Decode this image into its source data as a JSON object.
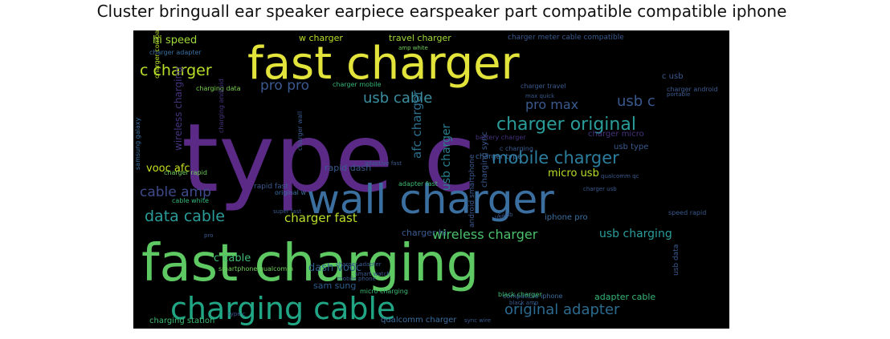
{
  "title": "Cluster bringuall ear speaker earpiece earspeaker part compatible compatible iphone",
  "words": [
    {
      "text": "type c",
      "color": "#5b2a86"
    },
    {
      "text": "fast charger",
      "color": "#e2e33b"
    },
    {
      "text": "wall charger",
      "color": "#3b6fa0"
    },
    {
      "text": "fast charging",
      "color": "#5ec962"
    },
    {
      "text": "charging cable",
      "color": "#21a685"
    },
    {
      "text": "charger original",
      "color": "#2a9d9a"
    },
    {
      "text": "mobile charger",
      "color": "#2c7e9e"
    },
    {
      "text": "original adapter",
      "color": "#2b6b8f"
    },
    {
      "text": "data cable",
      "color": "#2a9d9a"
    },
    {
      "text": "cable amp",
      "color": "#3f4a8a"
    },
    {
      "text": "c charger",
      "color": "#b8de29"
    },
    {
      "text": "hi speed",
      "color": "#a0da39"
    },
    {
      "text": "usb cable",
      "color": "#3b8fa0"
    },
    {
      "text": "pro max",
      "color": "#3a5a8f"
    },
    {
      "text": "usb c",
      "color": "#3a5a8f"
    },
    {
      "text": "pro pro",
      "color": "#3a5a8f"
    },
    {
      "text": "charger fast",
      "color": "#b8de29"
    },
    {
      "text": "wireless charger",
      "color": "#4ac16d"
    },
    {
      "text": "usb charging",
      "color": "#2a9d9a"
    },
    {
      "text": "c cable",
      "color": "#3fbc73"
    },
    {
      "text": "vooc afc",
      "color": "#c7e020"
    },
    {
      "text": "micro usb",
      "color": "#b8de29"
    },
    {
      "text": "afc charger",
      "color": "#2c6f8e"
    },
    {
      "text": "usb charger",
      "color": "#2a7f8e"
    },
    {
      "text": "dash vooc",
      "color": "#2e5d8c"
    },
    {
      "text": "sam sung",
      "color": "#2e5d8c"
    },
    {
      "text": "adapter cable",
      "color": "#35b779"
    },
    {
      "text": "charger hi",
      "color": "#3a5a8f"
    },
    {
      "text": "rapid dash",
      "color": "#3a5a8f"
    },
    {
      "text": "w charger",
      "color": "#b8de29"
    },
    {
      "text": "travel charger",
      "color": "#a0da39"
    },
    {
      "text": "charger meter cable compatible",
      "color": "#3a5a8f"
    },
    {
      "text": "charging data",
      "color": "#7ad151"
    },
    {
      "text": "iphone pro",
      "color": "#3b6fa0"
    },
    {
      "text": "usb type",
      "color": "#3a5a8f"
    },
    {
      "text": "cable white",
      "color": "#35b779"
    },
    {
      "text": "rapid fast",
      "color": "#3a5a8f"
    },
    {
      "text": "charging station",
      "color": "#3fbc73"
    },
    {
      "text": "android smartphone",
      "color": "#3a5a8f"
    },
    {
      "text": "samsung galaxy",
      "color": "#3b6fa0"
    },
    {
      "text": "wireless charging",
      "color": "#46337e"
    },
    {
      "text": "charger micro",
      "color": "#46337e"
    },
    {
      "text": "charger adapter",
      "color": "#3b6fa0"
    },
    {
      "text": "amp white",
      "color": "#6ece58"
    },
    {
      "text": "qualcomm charger",
      "color": "#3b6fa0"
    },
    {
      "text": "compatible iphone",
      "color": "#3b6fa0"
    },
    {
      "text": "speed rapid",
      "color": "#3a5a8f"
    },
    {
      "text": "charging sync",
      "color": "#3a5a8f"
    },
    {
      "text": "charger mobile",
      "color": "#35b779"
    },
    {
      "text": "charger type",
      "color": "#3b6fa0"
    },
    {
      "text": "original w",
      "color": "#3b6fa0"
    },
    {
      "text": "smartphone qualcomm",
      "color": "#6ece58"
    },
    {
      "text": "micro charging",
      "color": "#3fbc73"
    },
    {
      "text": "c usb",
      "color": "#3a5a8f"
    },
    {
      "text": "charger android",
      "color": "#3a5a8f"
    },
    {
      "text": "usb data",
      "color": "#3a5a8f"
    },
    {
      "text": "black charger",
      "color": "#3fbc73"
    },
    {
      "text": "charger rapid",
      "color": "#6ece58"
    },
    {
      "text": "charger compatible",
      "color": "#b8de29"
    },
    {
      "text": "charger travel",
      "color": "#3a5a8f"
    },
    {
      "text": "c charging",
      "color": "#3a5a8f"
    },
    {
      "text": "charger wall",
      "color": "#3a5a8f"
    },
    {
      "text": "adapter fast",
      "color": "#3fbc73"
    },
    {
      "text": "pro",
      "color": "#3a5a8f"
    },
    {
      "text": "usb",
      "color": "#3a5a8f"
    },
    {
      "text": "charging android",
      "color": "#46337e"
    },
    {
      "text": "battery charger",
      "color": "#46337e"
    },
    {
      "text": "portable",
      "color": "#3a5a8f"
    },
    {
      "text": "charger adapter",
      "color": "#3a5a8f"
    },
    {
      "text": "smart watch",
      "color": "#3a5a8f"
    },
    {
      "text": "mobile phone",
      "color": "#3a5a8f"
    },
    {
      "text": "black amp",
      "color": "#3a5a8f"
    },
    {
      "text": "super fast",
      "color": "#3a5a8f"
    },
    {
      "text": "max quick",
      "color": "#3a5a8f"
    },
    {
      "text": "adaptive fast",
      "color": "#3a5a8f"
    },
    {
      "text": "c usb",
      "color": "#3a5a8f"
    },
    {
      "text": "qualcomm qc",
      "color": "#3a5a8f"
    },
    {
      "text": "sync wire",
      "color": "#3a5a8f"
    },
    {
      "text": "type c",
      "color": "#3a5a8f"
    },
    {
      "text": "charger usb",
      "color": "#3a5a8f"
    }
  ]
}
